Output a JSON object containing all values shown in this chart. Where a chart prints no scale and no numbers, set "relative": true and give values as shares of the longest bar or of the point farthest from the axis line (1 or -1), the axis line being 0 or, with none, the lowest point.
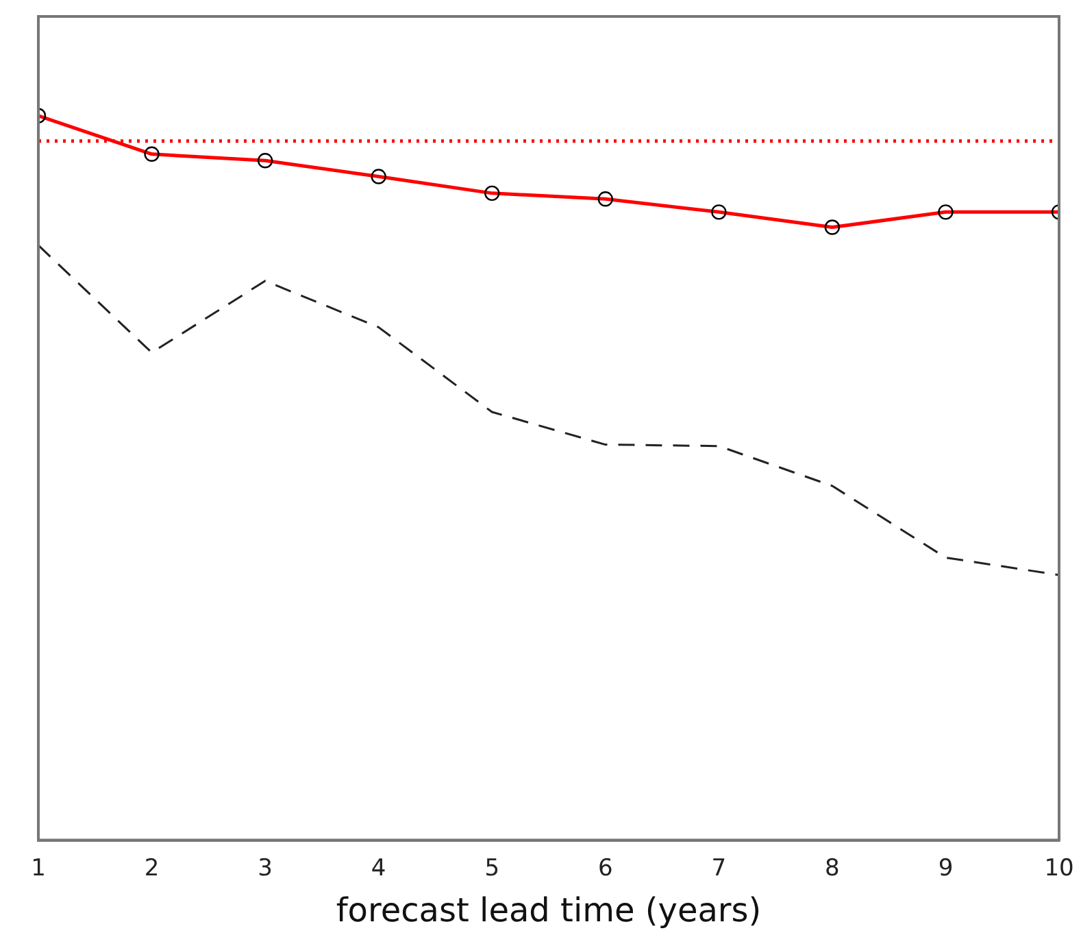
{
  "chart_data": {
    "type": "line",
    "xlabel": "forecast lead time (years)",
    "relative": true,
    "x": [
      1,
      2,
      3,
      4,
      5,
      6,
      7,
      8,
      9,
      10
    ],
    "xlim": [
      1,
      10
    ],
    "xticks": [
      1,
      2,
      3,
      4,
      5,
      6,
      7,
      8,
      9,
      10
    ],
    "tick_labels": "x",
    "grid": false,
    "legend": false,
    "series": [
      {
        "color": "#ff0000",
        "values": [
          1,
          0.947,
          0.938,
          0.916,
          0.893,
          0.885,
          0.867,
          0.846,
          0.867,
          0.867
        ],
        "marker": "circle",
        "line_style": "solid"
      },
      {
        "color": "#222222",
        "values": [
          0.821,
          0.673,
          0.772,
          0.708,
          0.591,
          0.546,
          0.544,
          0.489,
          0.39,
          0.366
        ],
        "marker": "none",
        "line_style": "dashed"
      }
    ],
    "ref_lines": [
      {
        "axis": "y",
        "value": 0.965,
        "color": "#ff0000",
        "line_style": "dotted"
      }
    ]
  }
}
